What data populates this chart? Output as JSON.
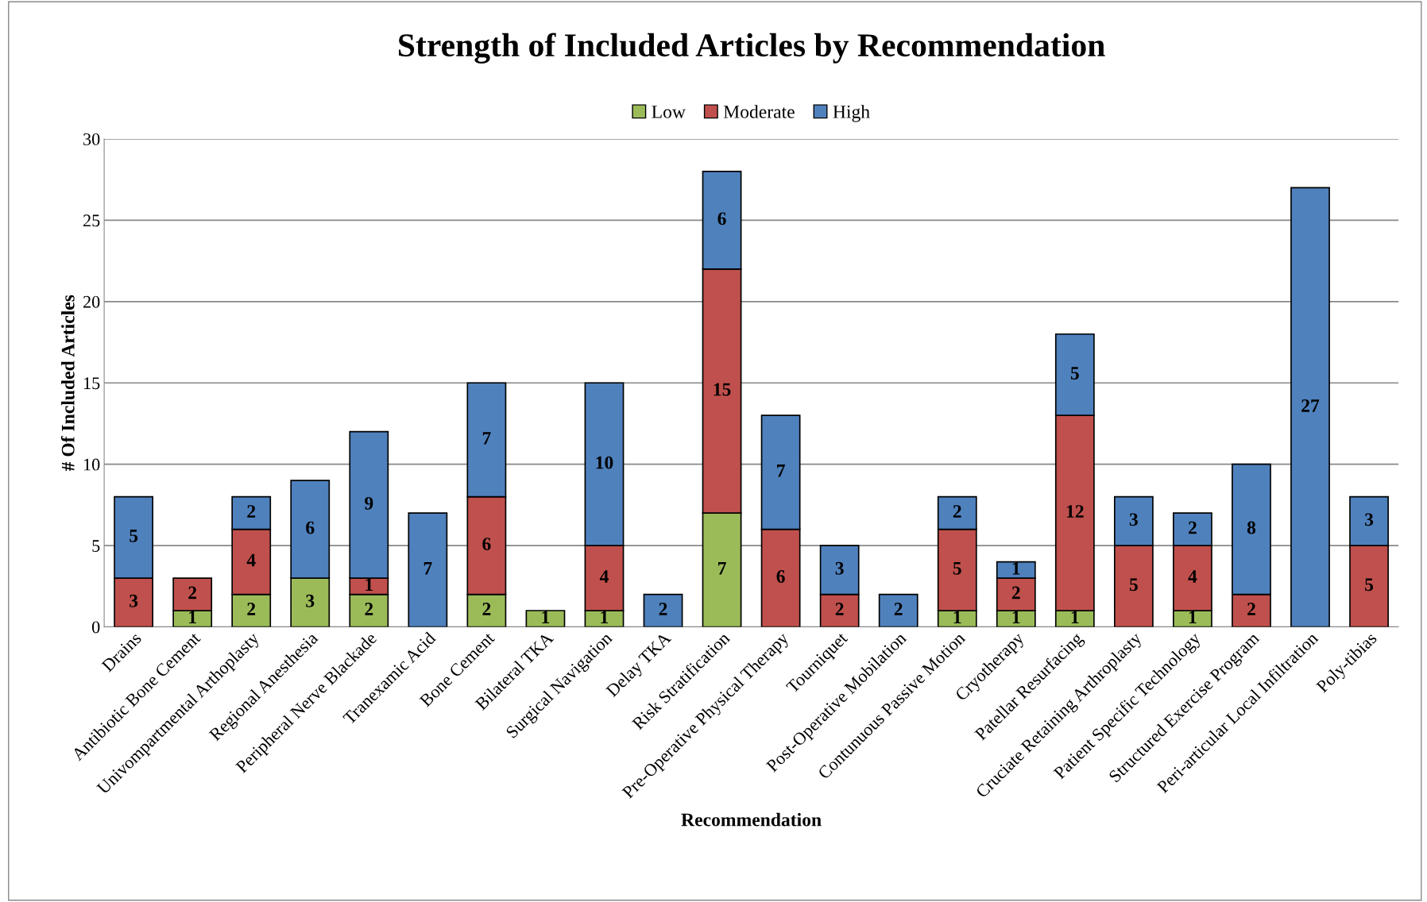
{
  "chart_data": {
    "type": "bar",
    "stacked": true,
    "title": "Strength of Included Articles by Recommendation",
    "xlabel": "Recommendation",
    "ylabel": "# Of Included Articles",
    "categories": [
      "Drains",
      "Antibiotic Bone Cement",
      "Univompartmental Arthoplasty",
      "Regional Anesthesia",
      "Peripheral Nerve Blackade",
      "Tranexamic Acid",
      "Bone Cement",
      "Bilateral TKA",
      "Surgical Navigation",
      "Delay TKA",
      "Risk Stratification",
      "Pre-Operative Physical Therapy",
      "Tourniquet",
      "Post-Operative Mobilation",
      "Contunuous Passive Motion",
      "Cryotherapy",
      "Patellar Resurfacing",
      "Cruciate Retaining Arthroplasty",
      "Patient Specific Technology",
      "Structured Exercise Program",
      "Peri-articular Local Infiltration",
      "Poly-tibias"
    ],
    "series": [
      {
        "name": "Low",
        "color": "#9bbb59",
        "values": [
          null,
          1,
          2,
          3,
          2,
          null,
          2,
          1,
          1,
          null,
          7,
          null,
          null,
          null,
          1,
          1,
          1,
          null,
          1,
          null,
          null,
          null
        ]
      },
      {
        "name": "Moderate",
        "color": "#c0504d",
        "values": [
          3,
          2,
          4,
          null,
          1,
          null,
          6,
          null,
          4,
          null,
          15,
          6,
          2,
          null,
          5,
          2,
          12,
          5,
          4,
          2,
          null,
          5
        ]
      },
      {
        "name": "High",
        "color": "#4f81bd",
        "values": [
          5,
          null,
          2,
          6,
          9,
          7,
          7,
          null,
          10,
          2,
          6,
          7,
          3,
          2,
          2,
          1,
          5,
          3,
          2,
          8,
          27,
          3
        ]
      }
    ],
    "ylim": [
      0,
      30
    ],
    "yticks": [
      0,
      5,
      10,
      15,
      20,
      25,
      30
    ],
    "grid": "y",
    "legend": "top",
    "data_labels": true
  }
}
